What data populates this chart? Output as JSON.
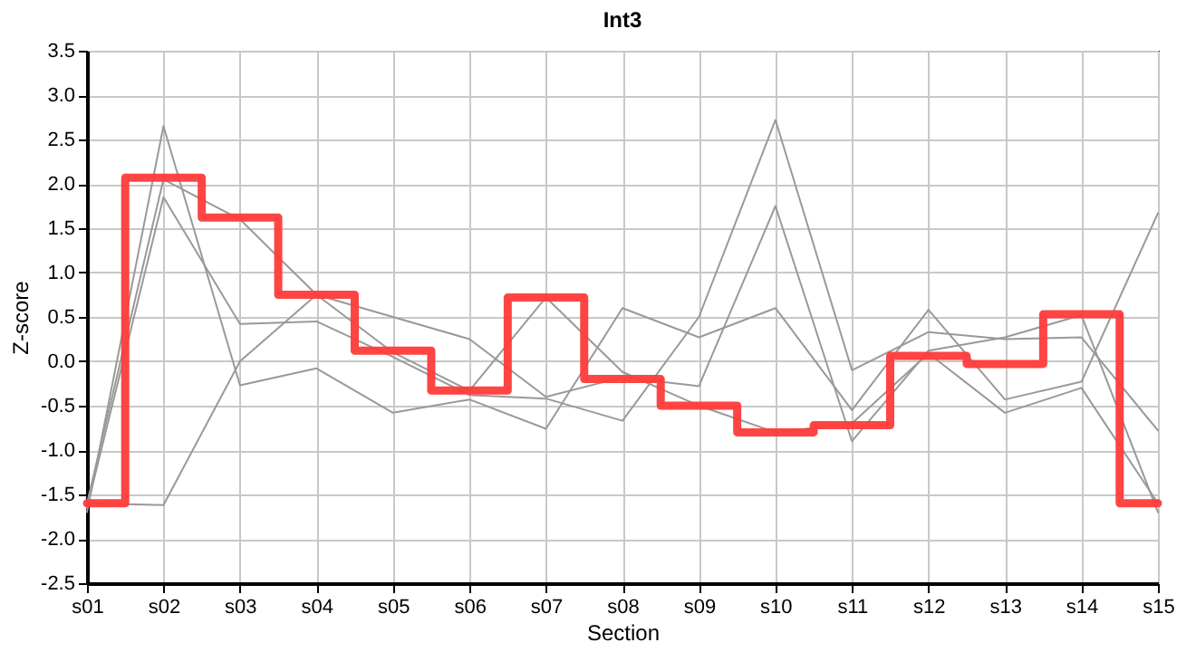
{
  "chart_data": {
    "type": "line",
    "title": "Int3",
    "xlabel": "Section",
    "ylabel": "Z-score",
    "categories": [
      "s01",
      "s02",
      "s03",
      "s04",
      "s05",
      "s06",
      "s07",
      "s08",
      "s09",
      "s10",
      "s11",
      "s12",
      "s13",
      "s14",
      "s15"
    ],
    "series": [
      {
        "type": "line",
        "color": "#999999",
        "values": [
          -1.7,
          2.65,
          -0.27,
          -0.08,
          -0.58,
          -0.43,
          -0.76,
          0.6,
          0.27,
          0.6,
          -0.55,
          0.58,
          -0.43,
          -0.23,
          1.67
        ]
      },
      {
        "type": "line",
        "color": "#999999",
        "values": [
          -1.6,
          2.05,
          1.6,
          0.75,
          0.5,
          0.25,
          -0.4,
          -0.18,
          -0.28,
          1.75,
          -0.9,
          0.12,
          0.27,
          0.52,
          -1.7
        ]
      },
      {
        "type": "line",
        "color": "#999999",
        "values": [
          -1.65,
          1.85,
          0.42,
          0.45,
          0.05,
          -0.38,
          -0.42,
          -0.67,
          0.5,
          2.72,
          -0.1,
          0.33,
          0.25,
          0.27,
          -0.78
        ]
      },
      {
        "type": "line",
        "color": "#999999",
        "values": [
          -1.6,
          -1.62,
          0.0,
          0.75,
          0.1,
          -0.33,
          0.72,
          -0.12,
          -0.5,
          -0.8,
          -0.7,
          0.09,
          -0.58,
          -0.3,
          -1.6
        ]
      },
      {
        "type": "step",
        "color": "#ff3a3a",
        "values": [
          -1.6,
          2.07,
          1.62,
          0.75,
          0.12,
          -0.33,
          0.72,
          -0.2,
          -0.5,
          -0.8,
          -0.72,
          0.06,
          -0.03,
          0.53,
          -1.6
        ]
      }
    ],
    "ylim": [
      -2.5,
      3.5
    ],
    "yticks": [
      -2.5,
      {
        "value": -2,
        "label": "-2.0"
      },
      -1.5,
      {
        "value": -1,
        "label": "-1.0"
      },
      -0.5,
      {
        "value": 0,
        "label": "0.0"
      },
      0.5,
      {
        "value": 1,
        "label": "1.0"
      },
      1.5,
      {
        "value": 2,
        "label": "2.0"
      },
      2.5,
      {
        "value": 3,
        "label": "3.0"
      },
      3.5
    ],
    "grid": true,
    "marker": "none",
    "line_style": "solid"
  }
}
